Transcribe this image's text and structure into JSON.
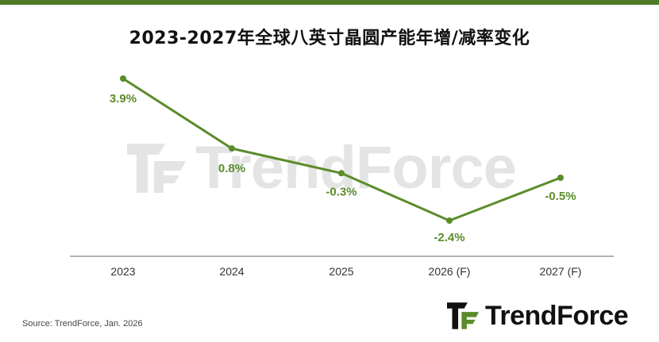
{
  "title": "2023-2027年全球八英寸晶圆产能年增/减率变化",
  "source": "Source: TrendForce, Jan. 2026",
  "brand": "TrendForce",
  "colors": {
    "accent": "#4e7a25",
    "line": "#5b8c2a",
    "label": "#5b8c2a",
    "axis": "#555555"
  },
  "chart_data": {
    "type": "line",
    "title": "2023-2027年全球八英寸晶圆产能年增/减率变化",
    "categories": [
      "2023",
      "2024",
      "2025",
      "2026 (F)",
      "2027 (F)"
    ],
    "values": [
      3.9,
      0.8,
      -0.3,
      -2.4,
      -0.5
    ],
    "data_labels": [
      "3.9%",
      "0.8%",
      "-0.3%",
      "-2.4%",
      "-0.5%"
    ],
    "unit": "%",
    "ylim": [
      -3.5,
      4.5
    ],
    "grid": false,
    "legend": "none"
  }
}
